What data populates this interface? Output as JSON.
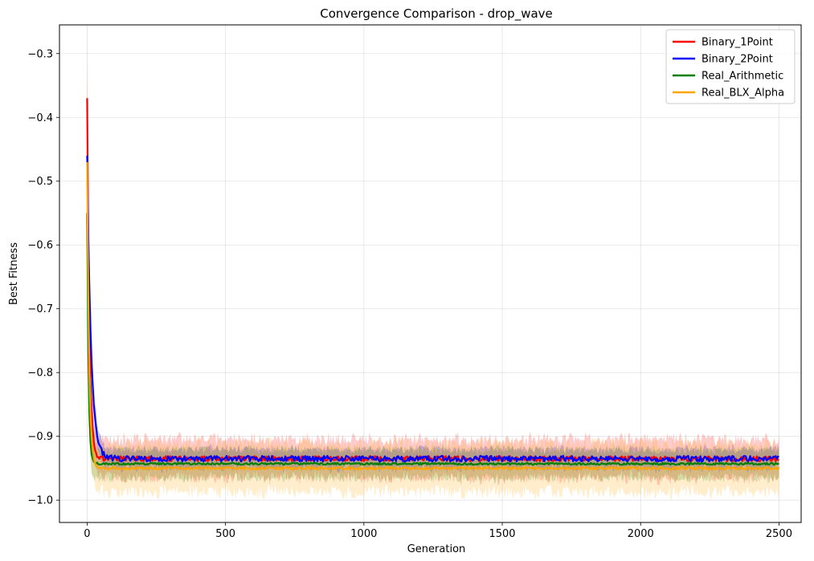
{
  "chart_data": {
    "type": "line",
    "title": "Convergence Comparison - drop_wave",
    "xlabel": "Generation",
    "ylabel": "Best Fitness",
    "xlim": [
      -100,
      2580
    ],
    "ylim": [
      -1.035,
      -0.255
    ],
    "xticks": [
      0,
      500,
      1000,
      1500,
      2000,
      2500
    ],
    "yticks": [
      -1.0,
      -0.9,
      -0.8,
      -0.7,
      -0.6,
      -0.5,
      -0.4,
      -0.3
    ],
    "ytick_labels": [
      "−1.0",
      "−0.9",
      "−0.8",
      "−0.7",
      "−0.6",
      "−0.5",
      "−0.4",
      "−0.3"
    ],
    "grid": true,
    "legend_position": "top-right",
    "max_generation": 2500,
    "series": [
      {
        "name": "Binary_1Point",
        "color": "#ff0000",
        "start": -0.37,
        "plateau": -0.935,
        "band": [
          -0.965,
          -0.905
        ],
        "noise": 0.004,
        "decay": 8
      },
      {
        "name": "Binary_2Point",
        "color": "#0000ff",
        "start": -0.46,
        "plateau": -0.935,
        "band": [
          -0.955,
          -0.925
        ],
        "noise": 0.0045,
        "decay": 14
      },
      {
        "name": "Real_Arithmetic",
        "color": "#008000",
        "start": -0.55,
        "plateau": -0.943,
        "band": [
          -0.965,
          -0.92
        ],
        "noise": 0.0015,
        "decay": 5
      },
      {
        "name": "Real_BLX_Alpha",
        "color": "#ffa500",
        "start": -0.47,
        "plateau": -0.95,
        "band": [
          -0.98,
          -0.905
        ],
        "noise": 0.002,
        "decay": 7
      }
    ]
  }
}
